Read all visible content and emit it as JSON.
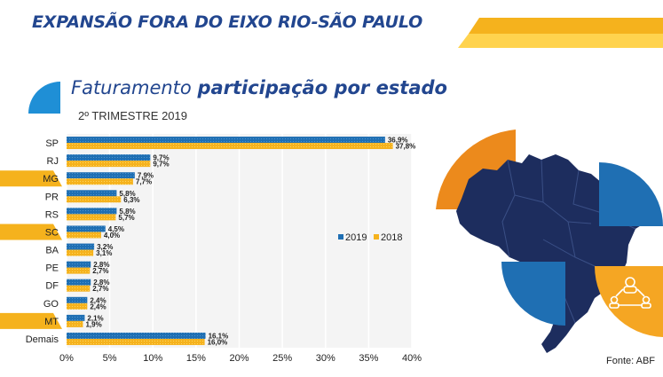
{
  "header": {
    "title": "EXPANSÃO FORA DO EIXO RIO-SÃO PAULO"
  },
  "subtitle": {
    "light": "Faturamento ",
    "bold": "participação por estado"
  },
  "period": "2º TRIMESTRE 2019",
  "source": "Fonte: ABF",
  "colors": {
    "blue": "#1f6fb3",
    "orange": "#f5b21d",
    "dark_orange": "#ec8a1c",
    "navy": "#1d2d5e",
    "title_blue": "#22468f"
  },
  "chart_data": {
    "type": "bar",
    "orientation": "horizontal",
    "categories": [
      "SP",
      "RJ",
      "MG",
      "PR",
      "RS",
      "SC",
      "BA",
      "PE",
      "DF",
      "GO",
      "MT",
      "Demais"
    ],
    "highlighted_categories": [
      "MG",
      "SC",
      "MT"
    ],
    "series": [
      {
        "name": "2019",
        "values": [
          36.9,
          9.7,
          7.9,
          5.8,
          5.8,
          4.5,
          3.2,
          2.8,
          2.8,
          2.4,
          2.1,
          16.1
        ],
        "labels": [
          "36,9%",
          "9,7%",
          "7,9%",
          "5,8%",
          "5,8%",
          "4,5%",
          "3,2%",
          "2,8%",
          "2,8%",
          "2,4%",
          "2,1%",
          "16,1%"
        ]
      },
      {
        "name": "2018",
        "values": [
          37.8,
          9.7,
          7.7,
          6.3,
          5.7,
          4.0,
          3.1,
          2.7,
          2.7,
          2.4,
          1.9,
          16.0
        ],
        "labels": [
          "37,8%",
          "9,7%",
          "7,7%",
          "6,3%",
          "5,7%",
          "4,0%",
          "3,1%",
          "2,7%",
          "2,7%",
          "2,4%",
          "1,9%",
          "16,0%"
        ]
      }
    ],
    "xlim": [
      0,
      40
    ],
    "xticks": [
      0,
      5,
      10,
      15,
      20,
      25,
      30,
      35,
      40
    ],
    "xtick_labels": [
      "0%",
      "5%",
      "10%",
      "15%",
      "20%",
      "25%",
      "30%",
      "35%",
      "40%"
    ],
    "grid": "vertical",
    "legend": "right-center"
  }
}
